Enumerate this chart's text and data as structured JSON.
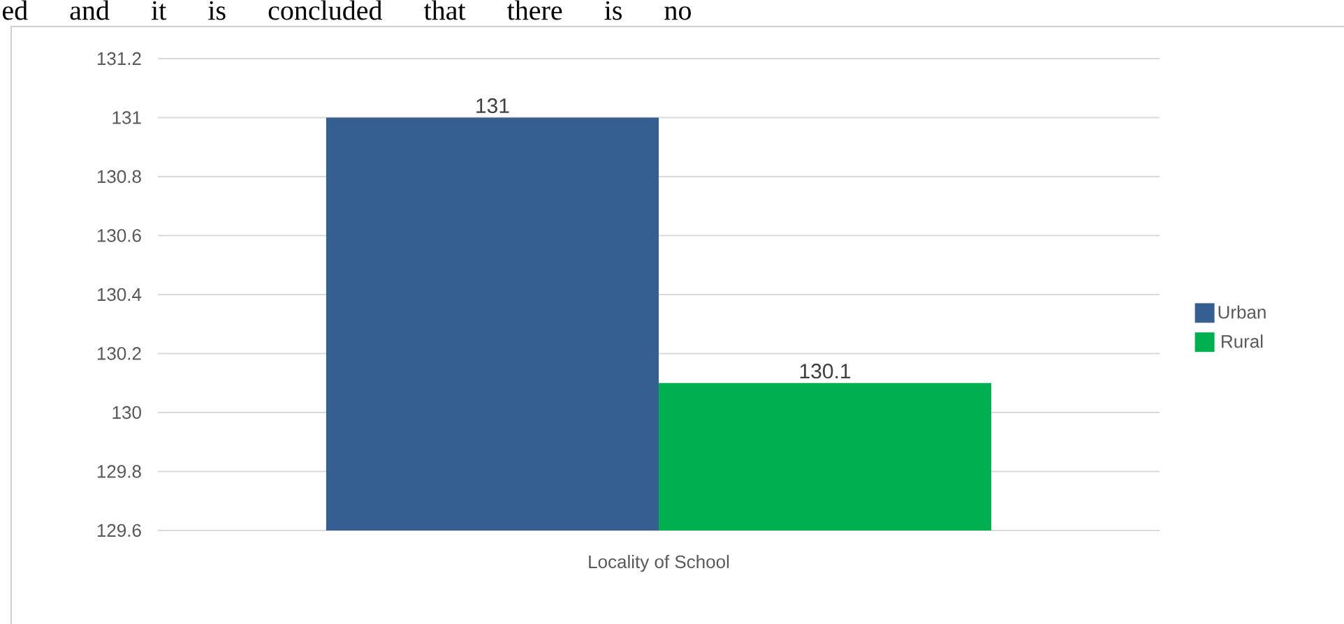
{
  "chart_data": {
    "type": "bar",
    "categories": [
      "Locality of School"
    ],
    "series": [
      {
        "name": "Urban",
        "color": "#355f91",
        "values": [
          131
        ]
      },
      {
        "name": "Rural",
        "color": "#00b050",
        "values": [
          130.1
        ]
      }
    ],
    "ylim": [
      129.6,
      131.2
    ],
    "yticks": [
      129.6,
      129.8,
      130,
      130.2,
      130.4,
      130.6,
      130.8,
      131,
      131.2
    ],
    "grid": "y",
    "legend": "right",
    "data_labels": true,
    "annotations": [
      "ed and it is concluded that there is no"
    ]
  }
}
